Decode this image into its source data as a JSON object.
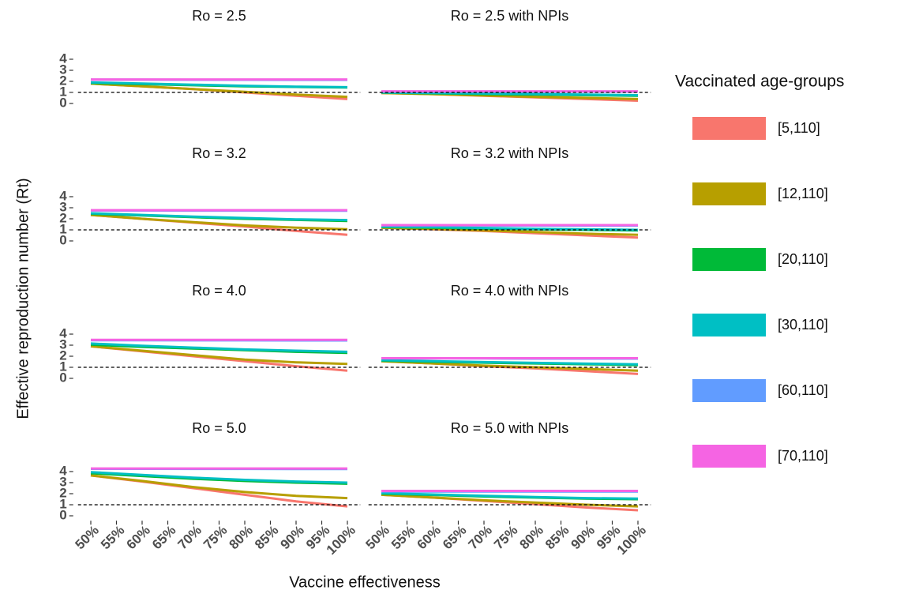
{
  "y_label": "Effective reproduction number (Rt)",
  "x_label": "Vaccine effectiveness",
  "legend_title": "Vaccinated age-groups",
  "chart_data": [
    {
      "type": "line",
      "title": "Ro = 2.5",
      "x": [
        50,
        60,
        70,
        80,
        90,
        100
      ],
      "xlim": [
        47.5,
        102.5
      ],
      "ylim": [
        -0.3,
        4.6
      ],
      "yticks": [
        0,
        1,
        2,
        3,
        4
      ],
      "hline": 1,
      "series": [
        {
          "name": "[5,110]",
          "color": "#F8766D",
          "values": [
            1.8,
            1.55,
            1.3,
            1.0,
            0.7,
            0.4
          ]
        },
        {
          "name": "[12,110]",
          "color": "#B79F00",
          "values": [
            1.8,
            1.55,
            1.3,
            1.05,
            0.8,
            0.6
          ]
        },
        {
          "name": "[20,110]",
          "color": "#00BA38",
          "values": [
            1.85,
            1.75,
            1.65,
            1.55,
            1.5,
            1.45
          ]
        },
        {
          "name": "[30,110]",
          "color": "#00BFC4",
          "values": [
            1.9,
            1.8,
            1.7,
            1.6,
            1.52,
            1.47
          ]
        },
        {
          "name": "[60,110]",
          "color": "#619CFF",
          "values": [
            2.15,
            2.15,
            2.14,
            2.14,
            2.13,
            2.13
          ]
        },
        {
          "name": "[70,110]",
          "color": "#F564E3",
          "values": [
            2.17,
            2.17,
            2.17,
            2.17,
            2.17,
            2.17
          ]
        }
      ]
    },
    {
      "type": "line",
      "title": "Ro = 2.5 with NPIs",
      "x": [
        50,
        60,
        70,
        80,
        90,
        100
      ],
      "xlim": [
        47.5,
        102.5
      ],
      "ylim": [
        -0.3,
        4.6
      ],
      "hline": 1,
      "series": [
        {
          "name": "[5,110]",
          "color": "#F8766D",
          "values": [
            0.95,
            0.85,
            0.7,
            0.55,
            0.4,
            0.25
          ]
        },
        {
          "name": "[12,110]",
          "color": "#B79F00",
          "values": [
            0.95,
            0.85,
            0.72,
            0.6,
            0.5,
            0.4
          ]
        },
        {
          "name": "[20,110]",
          "color": "#00BA38",
          "values": [
            0.98,
            0.92,
            0.85,
            0.8,
            0.75,
            0.7
          ]
        },
        {
          "name": "[30,110]",
          "color": "#00BFC4",
          "values": [
            1.0,
            0.95,
            0.9,
            0.85,
            0.8,
            0.75
          ]
        },
        {
          "name": "[60,110]",
          "color": "#619CFF",
          "values": [
            1.08,
            1.08,
            1.08,
            1.07,
            1.07,
            1.07
          ]
        },
        {
          "name": "[70,110]",
          "color": "#F564E3",
          "values": [
            1.1,
            1.1,
            1.1,
            1.1,
            1.1,
            1.1
          ]
        }
      ]
    },
    {
      "type": "line",
      "title": "Ro = 3.2",
      "x": [
        50,
        60,
        70,
        80,
        90,
        100
      ],
      "xlim": [
        47.5,
        102.5
      ],
      "ylim": [
        -0.3,
        4.6
      ],
      "yticks": [
        0,
        1,
        2,
        3,
        4
      ],
      "hline": 1,
      "series": [
        {
          "name": "[5,110]",
          "color": "#F8766D",
          "values": [
            2.35,
            2.0,
            1.65,
            1.3,
            0.9,
            0.55
          ]
        },
        {
          "name": "[12,110]",
          "color": "#B79F00",
          "values": [
            2.35,
            2.0,
            1.7,
            1.4,
            1.2,
            1.05
          ]
        },
        {
          "name": "[20,110]",
          "color": "#00BA38",
          "values": [
            2.45,
            2.3,
            2.15,
            2.0,
            1.9,
            1.8
          ]
        },
        {
          "name": "[30,110]",
          "color": "#00BFC4",
          "values": [
            2.5,
            2.35,
            2.2,
            2.07,
            1.95,
            1.88
          ]
        },
        {
          "name": "[60,110]",
          "color": "#619CFF",
          "values": [
            2.75,
            2.75,
            2.74,
            2.74,
            2.73,
            2.73
          ]
        },
        {
          "name": "[70,110]",
          "color": "#F564E3",
          "values": [
            2.78,
            2.78,
            2.78,
            2.78,
            2.78,
            2.78
          ]
        }
      ]
    },
    {
      "type": "line",
      "title": "Ro = 3.2 with NPIs",
      "x": [
        50,
        60,
        70,
        80,
        90,
        100
      ],
      "xlim": [
        47.5,
        102.5
      ],
      "ylim": [
        -0.3,
        4.6
      ],
      "hline": 1,
      "series": [
        {
          "name": "[5,110]",
          "color": "#F8766D",
          "values": [
            1.2,
            1.05,
            0.9,
            0.7,
            0.5,
            0.3
          ]
        },
        {
          "name": "[12,110]",
          "color": "#B79F00",
          "values": [
            1.2,
            1.08,
            0.95,
            0.8,
            0.65,
            0.55
          ]
        },
        {
          "name": "[20,110]",
          "color": "#00BA38",
          "values": [
            1.25,
            1.2,
            1.12,
            1.05,
            1.0,
            0.95
          ]
        },
        {
          "name": "[30,110]",
          "color": "#00BFC4",
          "values": [
            1.3,
            1.25,
            1.17,
            1.1,
            1.05,
            1.0
          ]
        },
        {
          "name": "[60,110]",
          "color": "#619CFF",
          "values": [
            1.4,
            1.4,
            1.4,
            1.39,
            1.39,
            1.39
          ]
        },
        {
          "name": "[70,110]",
          "color": "#F564E3",
          "values": [
            1.43,
            1.43,
            1.43,
            1.43,
            1.43,
            1.43
          ]
        }
      ]
    },
    {
      "type": "line",
      "title": "Ro = 4.0",
      "x": [
        50,
        60,
        70,
        80,
        90,
        100
      ],
      "xlim": [
        47.5,
        102.5
      ],
      "ylim": [
        -0.3,
        4.6
      ],
      "yticks": [
        0,
        1,
        2,
        3,
        4
      ],
      "hline": 1,
      "series": [
        {
          "name": "[5,110]",
          "color": "#F8766D",
          "values": [
            2.9,
            2.45,
            2.0,
            1.55,
            1.1,
            0.7
          ]
        },
        {
          "name": "[12,110]",
          "color": "#B79F00",
          "values": [
            2.9,
            2.5,
            2.1,
            1.7,
            1.45,
            1.3
          ]
        },
        {
          "name": "[20,110]",
          "color": "#00BA38",
          "values": [
            3.05,
            2.85,
            2.7,
            2.55,
            2.4,
            2.3
          ]
        },
        {
          "name": "[30,110]",
          "color": "#00BFC4",
          "values": [
            3.15,
            2.95,
            2.78,
            2.62,
            2.5,
            2.4
          ]
        },
        {
          "name": "[60,110]",
          "color": "#619CFF",
          "values": [
            3.45,
            3.45,
            3.44,
            3.44,
            3.43,
            3.43
          ]
        },
        {
          "name": "[70,110]",
          "color": "#F564E3",
          "values": [
            3.48,
            3.48,
            3.48,
            3.48,
            3.48,
            3.48
          ]
        }
      ]
    },
    {
      "type": "line",
      "title": "Ro = 4.0 with NPIs",
      "x": [
        50,
        60,
        70,
        80,
        90,
        100
      ],
      "xlim": [
        47.5,
        102.5
      ],
      "ylim": [
        -0.3,
        4.6
      ],
      "hline": 1,
      "series": [
        {
          "name": "[5,110]",
          "color": "#F8766D",
          "values": [
            1.55,
            1.35,
            1.1,
            0.9,
            0.65,
            0.4
          ]
        },
        {
          "name": "[12,110]",
          "color": "#B79F00",
          "values": [
            1.55,
            1.35,
            1.15,
            1.0,
            0.85,
            0.7
          ]
        },
        {
          "name": "[20,110]",
          "color": "#00BA38",
          "values": [
            1.6,
            1.5,
            1.42,
            1.35,
            1.28,
            1.2
          ]
        },
        {
          "name": "[30,110]",
          "color": "#00BFC4",
          "values": [
            1.65,
            1.55,
            1.47,
            1.4,
            1.33,
            1.27
          ]
        },
        {
          "name": "[60,110]",
          "color": "#619CFF",
          "values": [
            1.8,
            1.8,
            1.8,
            1.79,
            1.79,
            1.79
          ]
        },
        {
          "name": "[70,110]",
          "color": "#F564E3",
          "values": [
            1.82,
            1.82,
            1.82,
            1.82,
            1.82,
            1.82
          ]
        }
      ]
    },
    {
      "type": "line",
      "title": "Ro = 5.0",
      "x": [
        50,
        60,
        70,
        80,
        90,
        100
      ],
      "xlim": [
        47.5,
        102.5
      ],
      "ylim": [
        -0.3,
        4.6
      ],
      "yticks": [
        0,
        1,
        2,
        3,
        4
      ],
      "hline": 1,
      "xticks": [
        {
          "value": 50,
          "label": "50%"
        },
        {
          "value": 55,
          "label": "55%"
        },
        {
          "value": 60,
          "label": "60%"
        },
        {
          "value": 65,
          "label": "65%"
        },
        {
          "value": 70,
          "label": "70%"
        },
        {
          "value": 75,
          "label": "75%"
        },
        {
          "value": 80,
          "label": "80%"
        },
        {
          "value": 85,
          "label": "85%"
        },
        {
          "value": 90,
          "label": "90%"
        },
        {
          "value": 95,
          "label": "95%"
        },
        {
          "value": 100,
          "label": "100%"
        }
      ],
      "series": [
        {
          "name": "[5,110]",
          "color": "#F8766D",
          "values": [
            3.65,
            3.1,
            2.5,
            1.9,
            1.3,
            0.85
          ]
        },
        {
          "name": "[12,110]",
          "color": "#B79F00",
          "values": [
            3.65,
            3.15,
            2.6,
            2.15,
            1.8,
            1.6
          ]
        },
        {
          "name": "[20,110]",
          "color": "#00BA38",
          "values": [
            3.85,
            3.6,
            3.35,
            3.15,
            3.0,
            2.9
          ]
        },
        {
          "name": "[30,110]",
          "color": "#00BFC4",
          "values": [
            3.95,
            3.7,
            3.45,
            3.25,
            3.1,
            3.0
          ]
        },
        {
          "name": "[60,110]",
          "color": "#619CFF",
          "values": [
            4.25,
            4.25,
            4.24,
            4.24,
            4.23,
            4.23
          ]
        },
        {
          "name": "[70,110]",
          "color": "#F564E3",
          "values": [
            4.28,
            4.28,
            4.28,
            4.28,
            4.28,
            4.28
          ]
        }
      ]
    },
    {
      "type": "line",
      "title": "Ro = 5.0 with NPIs",
      "x": [
        50,
        60,
        70,
        80,
        90,
        100
      ],
      "xlim": [
        47.5,
        102.5
      ],
      "ylim": [
        -0.3,
        4.6
      ],
      "hline": 1,
      "xticks": [
        {
          "value": 50,
          "label": "50%"
        },
        {
          "value": 55,
          "label": "55%"
        },
        {
          "value": 60,
          "label": "60%"
        },
        {
          "value": 65,
          "label": "65%"
        },
        {
          "value": 70,
          "label": "70%"
        },
        {
          "value": 75,
          "label": "75%"
        },
        {
          "value": 80,
          "label": "80%"
        },
        {
          "value": 85,
          "label": "85%"
        },
        {
          "value": 90,
          "label": "90%"
        },
        {
          "value": 95,
          "label": "95%"
        },
        {
          "value": 100,
          "label": "100%"
        }
      ],
      "series": [
        {
          "name": "[5,110]",
          "color": "#F8766D",
          "values": [
            1.9,
            1.65,
            1.35,
            1.05,
            0.75,
            0.5
          ]
        },
        {
          "name": "[12,110]",
          "color": "#B79F00",
          "values": [
            1.9,
            1.65,
            1.4,
            1.2,
            1.0,
            0.85
          ]
        },
        {
          "name": "[20,110]",
          "color": "#00BA38",
          "values": [
            2.0,
            1.88,
            1.75,
            1.65,
            1.55,
            1.5
          ]
        },
        {
          "name": "[30,110]",
          "color": "#00BFC4",
          "values": [
            2.05,
            1.93,
            1.8,
            1.7,
            1.6,
            1.55
          ]
        },
        {
          "name": "[60,110]",
          "color": "#619CFF",
          "values": [
            2.2,
            2.2,
            2.2,
            2.2,
            2.2,
            2.2
          ]
        },
        {
          "name": "[70,110]",
          "color": "#F564E3",
          "values": [
            2.25,
            2.25,
            2.25,
            2.25,
            2.25,
            2.25
          ]
        }
      ]
    }
  ]
}
